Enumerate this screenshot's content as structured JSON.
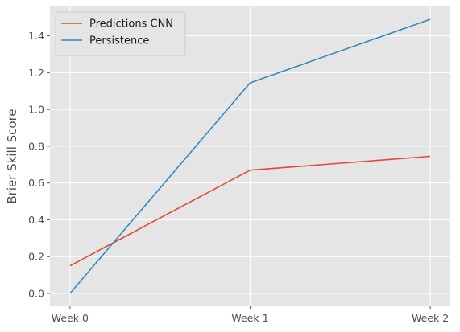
{
  "chart_data": {
    "type": "line",
    "title": "",
    "xlabel": "",
    "ylabel": "Brier Skill Score",
    "categories": [
      "Week 0",
      "Week 1",
      "Week 2"
    ],
    "series": [
      {
        "name": "Predictions CNN",
        "values": [
          0.15,
          0.67,
          0.745
        ],
        "color": "#e24a33"
      },
      {
        "name": "Persistence",
        "values": [
          0.0,
          1.145,
          1.49
        ],
        "color": "#348abd"
      }
    ],
    "ylim": [
      -0.07,
      1.56
    ],
    "yticks": [
      0.0,
      0.2,
      0.4,
      0.6,
      0.8,
      1.0,
      1.2,
      1.4
    ],
    "ytick_labels": [
      "0.0",
      "0.2",
      "0.4",
      "0.6",
      "0.8",
      "1.0",
      "1.2",
      "1.4"
    ],
    "grid": true,
    "legend_position": "top-left",
    "background_color": "#e5e5e5",
    "grid_color": "#ffffff"
  }
}
